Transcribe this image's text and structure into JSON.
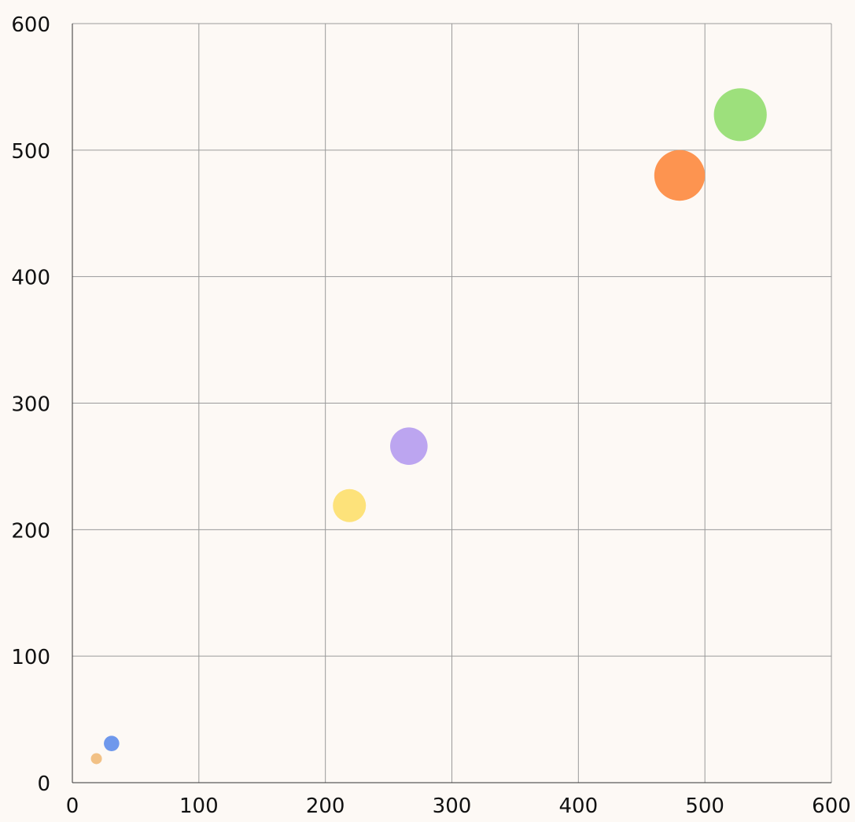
{
  "chart_data": {
    "type": "scatter",
    "title": "",
    "xlabel": "",
    "ylabel": "",
    "xlim": [
      0,
      600
    ],
    "ylim": [
      0,
      600
    ],
    "x_ticks": [
      0,
      100,
      200,
      300,
      400,
      500,
      600
    ],
    "y_ticks": [
      0,
      100,
      200,
      300,
      400,
      500,
      600
    ],
    "grid": true,
    "points": [
      {
        "x": 19,
        "y": 19,
        "size": 5,
        "color": "#f2c185"
      },
      {
        "x": 31,
        "y": 31,
        "size": 7,
        "color": "#6f98ec"
      },
      {
        "x": 219,
        "y": 219,
        "size": 15,
        "color": "#fde27a"
      },
      {
        "x": 266,
        "y": 266,
        "size": 17,
        "color": "#bca5f0"
      },
      {
        "x": 480,
        "y": 480,
        "size": 23,
        "color": "#fd9450"
      },
      {
        "x": 528,
        "y": 528,
        "size": 24,
        "color": "#9de07c"
      }
    ]
  }
}
